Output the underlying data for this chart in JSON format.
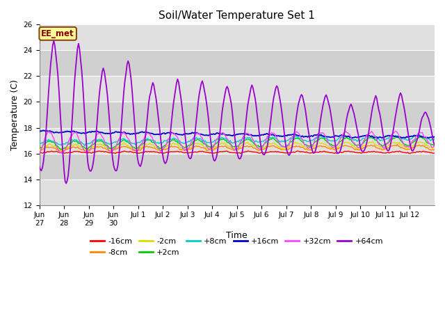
{
  "title": "Soil/Water Temperature Set 1",
  "xlabel": "Time",
  "ylabel": "Temperature (C)",
  "ylim": [
    12,
    26
  ],
  "yticks": [
    12,
    14,
    16,
    18,
    20,
    22,
    24,
    26
  ],
  "plot_bg_color": "#ebebeb",
  "annotation_text": "EE_met",
  "annotation_box_color": "#ffff99",
  "annotation_box_edge": "#8B4513",
  "series_colors": {
    "-16cm": "#ff0000",
    "-8cm": "#ff8800",
    "-2cm": "#dddd00",
    "+2cm": "#00cc00",
    "+8cm": "#00cccc",
    "+16cm": "#0000cc",
    "+32cm": "#ff44ff",
    "+64cm": "#9900cc"
  },
  "tick_labels": [
    "Jun",
    "27Jun",
    "28Jun",
    "29Jun",
    "30",
    "Jul 1",
    "Jul 2",
    "Jul 3",
    "Jul 4",
    "Jul 5",
    "Jul 6",
    "Jul 7",
    "Jul 8",
    "Jul 9",
    "Jul 10",
    "Jul 11",
    "Jul 12"
  ],
  "band_colors": [
    "#e0e0e0",
    "#d0d0d0"
  ],
  "grid_color": "#ffffff"
}
